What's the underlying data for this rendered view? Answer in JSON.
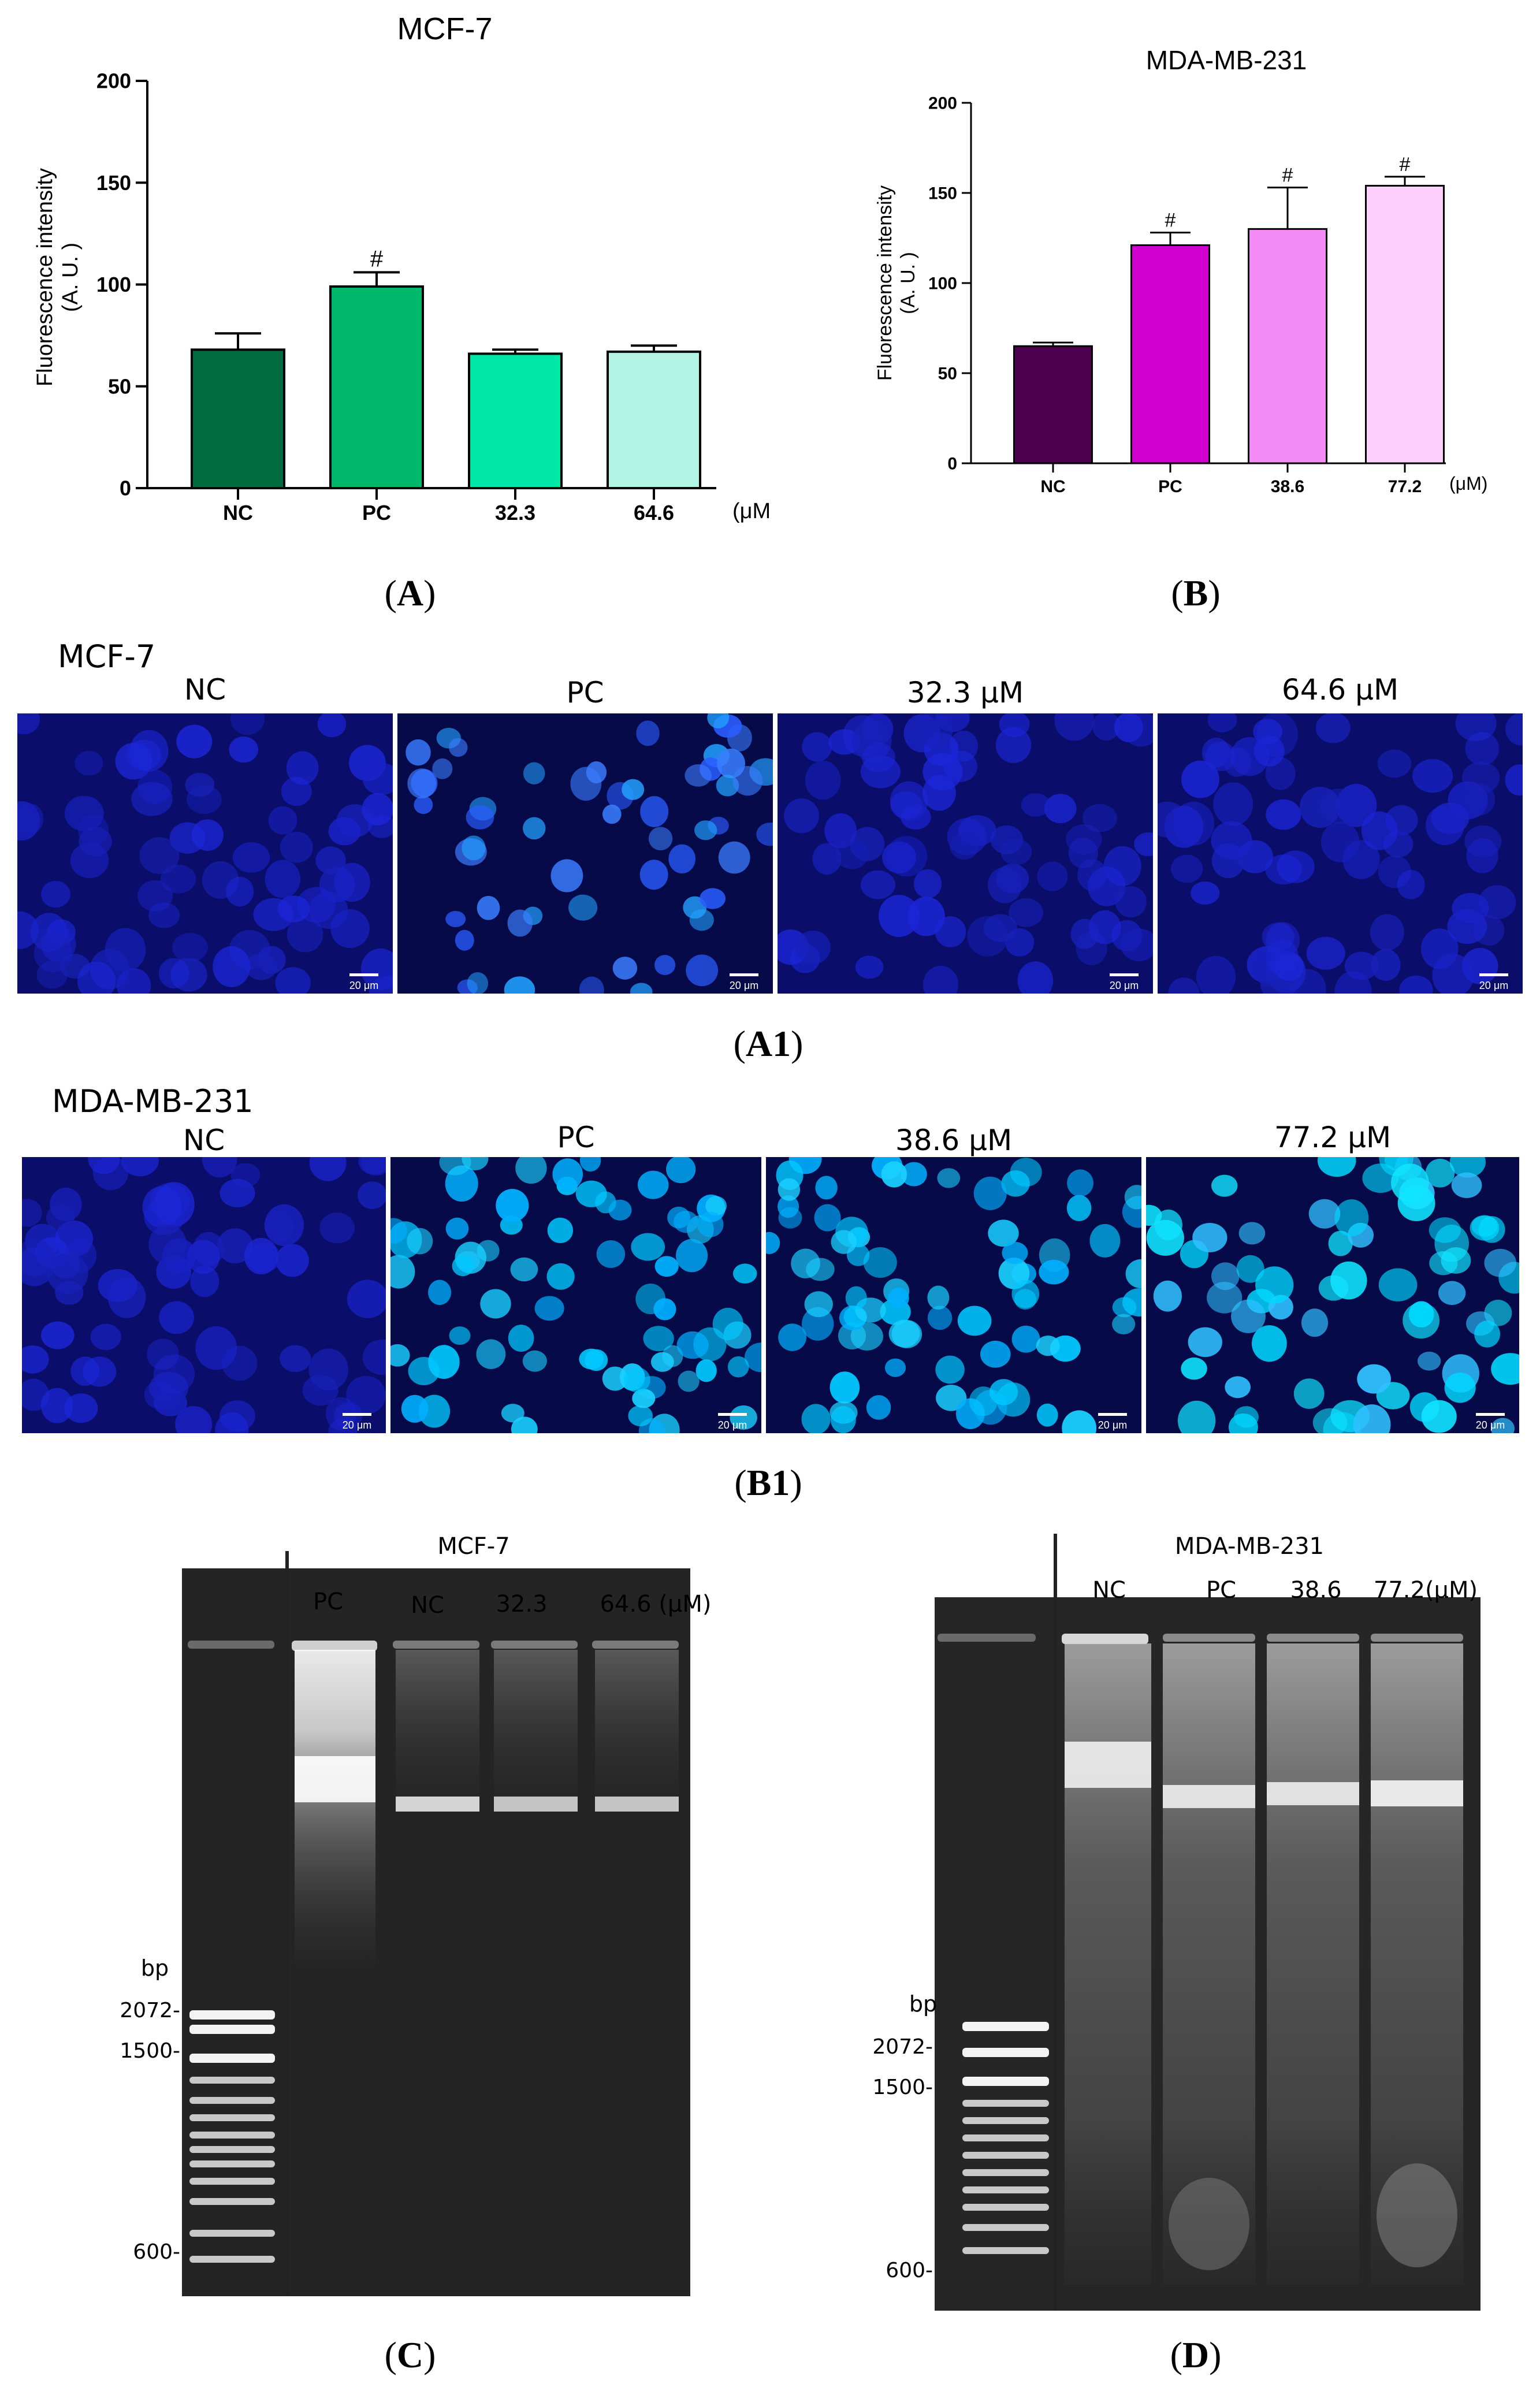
{
  "charts": {
    "A": {
      "title": "MCF-7",
      "ylabel_line1": "Fluorescence intensity",
      "ylabel_line2": "(A. U. )",
      "unit": "(μM)",
      "ylim": [
        0,
        200
      ],
      "yticks": [
        "0",
        "50",
        "100",
        "150",
        "200"
      ],
      "colors": [
        "#006b3e",
        "#00b86b",
        "#00e8a8",
        "#b3f5e5"
      ]
    },
    "B": {
      "title": "MDA-MB-231",
      "ylabel_line1": "Fluorescence intensity",
      "ylabel_line2": "(A. U. )",
      "unit": "(μM)",
      "ylim": [
        0,
        200
      ],
      "yticks": [
        "0",
        "50",
        "100",
        "150",
        "200"
      ],
      "colors": [
        "#4d004d",
        "#d100d1",
        "#f58cf5",
        "#fccffc"
      ]
    }
  },
  "chart_data": [
    {
      "type": "bar",
      "title": "MCF-7",
      "xlabel": "(μM)",
      "ylabel": "Fluorescence intensity (A. U. )",
      "categories": [
        "NC",
        "PC",
        "32.3",
        "64.6"
      ],
      "values": [
        68,
        99,
        66,
        67
      ],
      "errors": [
        8,
        7,
        2,
        3
      ],
      "annotations": [
        "",
        "#",
        "",
        ""
      ],
      "ylim": [
        0,
        200
      ],
      "grid": false
    },
    {
      "type": "bar",
      "title": "MDA-MB-231",
      "xlabel": "(μM)",
      "ylabel": "Fluorescence intensity (A. U. )",
      "categories": [
        "NC",
        "PC",
        "38.6",
        "77.2"
      ],
      "values": [
        65,
        121,
        130,
        154
      ],
      "errors": [
        2,
        7,
        23,
        5
      ],
      "annotations": [
        "",
        "#",
        "#",
        "#"
      ],
      "ylim": [
        0,
        200
      ],
      "grid": false
    }
  ],
  "labels": {
    "A": "A",
    "B": "B",
    "A1": "A1",
    "B1": "B1",
    "C": "C",
    "D": "D",
    "open": "(",
    "close": ")"
  },
  "micro_mcf7": {
    "title": "MCF-7",
    "panels": [
      {
        "label": "NC",
        "scale": "20 μm"
      },
      {
        "label": "PC",
        "scale": "20 μm"
      },
      {
        "label": "32.3 μM",
        "scale": "20 μm"
      },
      {
        "label": "64.6 μM",
        "scale": "20 μm"
      }
    ]
  },
  "micro_mda": {
    "title": "MDA-MB-231",
    "panels": [
      {
        "label": "NC",
        "scale": "20 μm"
      },
      {
        "label": "PC",
        "scale": "20 μm"
      },
      {
        "label": "38.6 μM",
        "scale": "20 μm"
      },
      {
        "label": "77.2 μM",
        "scale": "20 μm"
      }
    ]
  },
  "gel_c": {
    "title": "MCF-7",
    "lanes": [
      "PC",
      "NC",
      "32.3",
      "64.6 (μM)"
    ],
    "bp_label": "bp",
    "markers": [
      "2072-",
      "1500-",
      "600-"
    ]
  },
  "gel_d": {
    "title": "MDA-MB-231",
    "lanes": [
      "NC",
      "PC",
      "38.6",
      "77.2(μM)"
    ],
    "bp_label": "bp",
    "markers": [
      "2072-",
      "1500-",
      "600-"
    ]
  }
}
